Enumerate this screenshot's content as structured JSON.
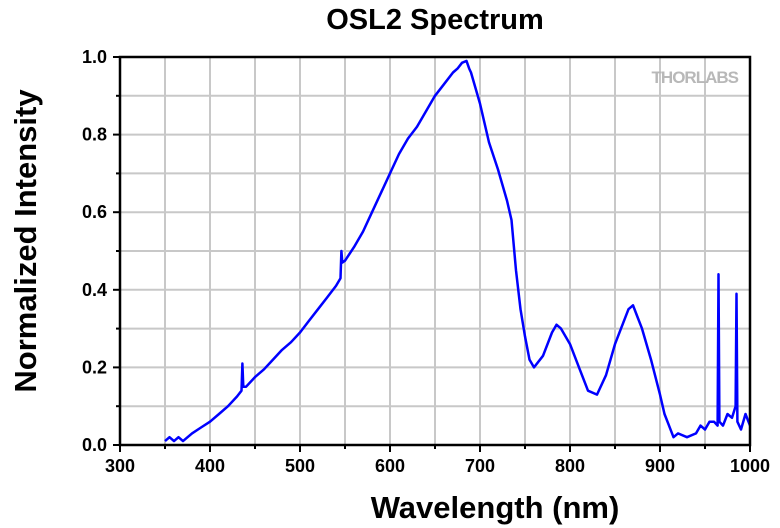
{
  "chart_data": {
    "type": "line",
    "title": "OSL2 Spectrum",
    "xlabel": "Wavelength (nm)",
    "ylabel": "Normalized Intensity",
    "xlim": [
      300,
      1000
    ],
    "ylim": [
      0,
      1
    ],
    "xticks": [
      300,
      400,
      500,
      600,
      700,
      800,
      900,
      1000
    ],
    "yticks": [
      "0.0",
      "0.2",
      "0.4",
      "0.6",
      "0.8",
      "1.0"
    ],
    "grid": true,
    "watermark": "THORLABS",
    "line_color": "#0000ff",
    "series": [
      {
        "x": [
          350,
          355,
          360,
          365,
          370,
          380,
          390,
          400,
          410,
          420,
          430,
          435,
          436,
          437,
          440,
          450,
          460,
          470,
          480,
          490,
          500,
          510,
          520,
          530,
          540,
          545,
          546,
          547,
          550,
          560,
          570,
          580,
          590,
          600,
          610,
          620,
          630,
          640,
          650,
          660,
          670,
          675,
          680,
          685,
          688,
          690,
          700,
          710,
          720,
          730,
          735,
          740,
          745,
          750,
          755,
          760,
          770,
          780,
          785,
          790,
          800,
          810,
          820,
          830,
          840,
          850,
          860,
          865,
          870,
          875,
          880,
          890,
          900,
          905,
          910,
          915,
          920,
          930,
          940,
          945,
          950,
          955,
          960,
          964,
          965,
          966,
          970,
          975,
          980,
          984,
          985,
          986,
          990,
          995,
          1000
        ],
        "y": [
          0.01,
          0.02,
          0.01,
          0.02,
          0.01,
          0.03,
          0.045,
          0.06,
          0.08,
          0.1,
          0.125,
          0.14,
          0.21,
          0.15,
          0.15,
          0.175,
          0.195,
          0.22,
          0.245,
          0.265,
          0.29,
          0.32,
          0.35,
          0.38,
          0.41,
          0.43,
          0.5,
          0.47,
          0.475,
          0.51,
          0.55,
          0.6,
          0.65,
          0.7,
          0.75,
          0.79,
          0.82,
          0.86,
          0.9,
          0.93,
          0.96,
          0.97,
          0.985,
          0.99,
          0.97,
          0.96,
          0.88,
          0.78,
          0.71,
          0.63,
          0.58,
          0.45,
          0.35,
          0.28,
          0.22,
          0.2,
          0.23,
          0.29,
          0.31,
          0.3,
          0.26,
          0.2,
          0.14,
          0.13,
          0.18,
          0.26,
          0.32,
          0.35,
          0.36,
          0.33,
          0.3,
          0.22,
          0.13,
          0.08,
          0.05,
          0.02,
          0.03,
          0.02,
          0.03,
          0.05,
          0.04,
          0.06,
          0.06,
          0.05,
          0.44,
          0.06,
          0.05,
          0.08,
          0.07,
          0.1,
          0.39,
          0.06,
          0.04,
          0.08,
          0.05
        ]
      }
    ]
  }
}
